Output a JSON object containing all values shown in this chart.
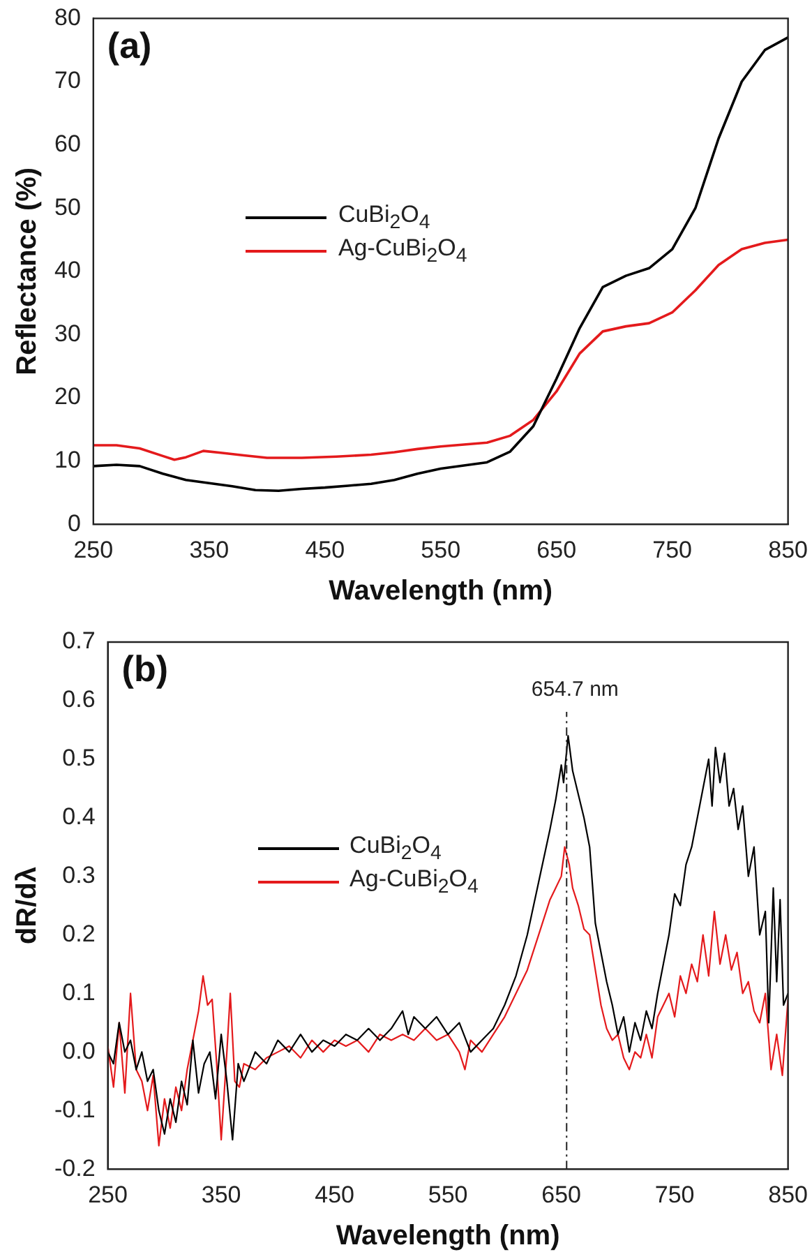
{
  "chart_data": [
    {
      "type": "line",
      "xlabel": "Wavelength (nm)",
      "ylabel": "Reflectance (%)",
      "xlim": [
        250,
        850
      ],
      "xticks": [
        250,
        350,
        450,
        550,
        650,
        750,
        850
      ],
      "ylim": [
        0,
        80
      ],
      "yticks": [
        0,
        10,
        20,
        30,
        40,
        50,
        60,
        70,
        80
      ],
      "legend": "left",
      "grid": false,
      "annotations": [
        "(a)"
      ],
      "series": [
        {
          "name": "CuBi$_{2}$O$_{4}$",
          "color": "#000000",
          "x": [
            250,
            270,
            290,
            310,
            330,
            350,
            370,
            390,
            410,
            430,
            450,
            470,
            490,
            510,
            530,
            550,
            570,
            590,
            610,
            630,
            650,
            670,
            690,
            710,
            730,
            750,
            770,
            790,
            810,
            830,
            850
          ],
          "values": [
            9.2,
            9.4,
            9.2,
            8,
            7,
            6.5,
            6,
            5.4,
            5.3,
            5.6,
            5.8,
            6.1,
            6.4,
            7,
            8,
            8.8,
            9.3,
            9.8,
            11.5,
            15.5,
            23,
            31,
            37.5,
            39.3,
            40.5,
            43.5,
            50,
            61,
            70,
            75,
            77
          ]
        },
        {
          "name": "Ag-CuBi$_{2}$O$_{4}$",
          "color": "#e41a1c",
          "x": [
            250,
            270,
            290,
            310,
            320,
            330,
            345,
            360,
            380,
            400,
            430,
            460,
            490,
            510,
            530,
            550,
            570,
            590,
            610,
            630,
            650,
            670,
            690,
            710,
            730,
            750,
            770,
            790,
            810,
            830,
            850
          ],
          "values": [
            12.5,
            12.5,
            12,
            10.8,
            10.2,
            10.6,
            11.6,
            11.3,
            10.9,
            10.5,
            10.5,
            10.7,
            11,
            11.4,
            11.9,
            12.3,
            12.6,
            12.9,
            14,
            16.5,
            21,
            27,
            30.5,
            31.3,
            31.8,
            33.5,
            37,
            41,
            43.5,
            44.5,
            45
          ]
        }
      ]
    },
    {
      "type": "line",
      "xlabel": "Wavelength (nm)",
      "ylabel": "dR/dλ",
      "xlim": [
        250,
        850
      ],
      "xticks": [
        250,
        350,
        450,
        550,
        650,
        750,
        850
      ],
      "ylim": [
        -0.2,
        0.7
      ],
      "yticks": [
        {
          "value": -0.2,
          "label": "-0.2"
        },
        {
          "value": -0.1,
          "label": "-0.1"
        },
        {
          "value": 0,
          "label": "0.0"
        },
        0.1,
        0.2,
        0.3,
        0.4,
        0.5,
        0.6,
        0.7
      ],
      "legend": "left",
      "grid": false,
      "annotations": [
        "(b)"
      ],
      "ref_lines": [
        {
          "axis": "x",
          "value": 654.7,
          "label": "654.7 nm",
          "line_style": "dashdot"
        }
      ],
      "series": [
        {
          "name": "CuBi$_{2}$O$_{4}$",
          "color": "#000000",
          "x": [
            250,
            255,
            260,
            265,
            270,
            275,
            280,
            285,
            290,
            295,
            300,
            305,
            310,
            315,
            320,
            325,
            330,
            335,
            340,
            345,
            350,
            355,
            360,
            365,
            370,
            380,
            390,
            400,
            410,
            420,
            430,
            440,
            450,
            460,
            470,
            480,
            490,
            500,
            510,
            515,
            520,
            530,
            540,
            550,
            560,
            570,
            580,
            590,
            600,
            610,
            620,
            630,
            640,
            645,
            650,
            652,
            656,
            660,
            665,
            670,
            675,
            680,
            685,
            690,
            695,
            700,
            705,
            710,
            715,
            720,
            725,
            730,
            735,
            740,
            745,
            750,
            755,
            760,
            765,
            770,
            775,
            780,
            783,
            786,
            790,
            794,
            798,
            802,
            806,
            810,
            815,
            820,
            825,
            830,
            833,
            837,
            840,
            843,
            846,
            850
          ],
          "values": [
            0.0,
            -0.02,
            0.05,
            0.0,
            0.02,
            -0.03,
            0.0,
            -0.05,
            -0.03,
            -0.1,
            -0.14,
            -0.08,
            -0.12,
            -0.05,
            -0.09,
            0.02,
            -0.07,
            -0.02,
            0.0,
            -0.08,
            0.03,
            -0.05,
            -0.15,
            -0.02,
            -0.05,
            0.0,
            -0.02,
            0.02,
            0.0,
            0.03,
            0.0,
            0.02,
            0.01,
            0.03,
            0.02,
            0.04,
            0.02,
            0.04,
            0.07,
            0.03,
            0.06,
            0.04,
            0.06,
            0.03,
            0.05,
            0.0,
            0.02,
            0.04,
            0.08,
            0.13,
            0.2,
            0.29,
            0.38,
            0.43,
            0.49,
            0.46,
            0.54,
            0.48,
            0.44,
            0.4,
            0.35,
            0.22,
            0.17,
            0.12,
            0.08,
            0.03,
            0.06,
            0.0,
            0.05,
            0.02,
            0.07,
            0.04,
            0.1,
            0.15,
            0.2,
            0.27,
            0.25,
            0.32,
            0.35,
            0.4,
            0.45,
            0.5,
            0.42,
            0.52,
            0.46,
            0.51,
            0.42,
            0.45,
            0.38,
            0.42,
            0.3,
            0.35,
            0.2,
            0.24,
            0.05,
            0.28,
            0.12,
            0.26,
            0.08,
            0.1
          ]
        },
        {
          "name": "Ag-CuBi$_{2}$O$_{4}$",
          "color": "#e41a1c",
          "x": [
            250,
            255,
            260,
            265,
            270,
            275,
            280,
            285,
            290,
            295,
            300,
            305,
            310,
            315,
            320,
            325,
            330,
            334,
            338,
            342,
            346,
            350,
            355,
            358,
            362,
            366,
            370,
            380,
            390,
            400,
            410,
            420,
            430,
            440,
            450,
            460,
            470,
            480,
            490,
            500,
            510,
            520,
            530,
            540,
            550,
            560,
            565,
            570,
            580,
            590,
            600,
            610,
            620,
            630,
            640,
            645,
            650,
            653,
            657,
            660,
            665,
            670,
            675,
            680,
            685,
            690,
            695,
            700,
            705,
            710,
            715,
            720,
            725,
            730,
            735,
            740,
            745,
            750,
            755,
            760,
            765,
            770,
            775,
            780,
            785,
            790,
            795,
            800,
            805,
            810,
            815,
            820,
            825,
            830,
            835,
            840,
            845,
            850
          ],
          "values": [
            0.01,
            -0.06,
            0.05,
            -0.07,
            0.1,
            -0.03,
            -0.05,
            -0.1,
            -0.04,
            -0.16,
            -0.08,
            -0.13,
            -0.06,
            -0.1,
            -0.03,
            0.02,
            0.07,
            0.13,
            0.08,
            0.09,
            -0.02,
            -0.15,
            0.0,
            0.1,
            -0.05,
            -0.06,
            -0.02,
            -0.03,
            -0.01,
            0.0,
            0.01,
            -0.01,
            0.02,
            0.0,
            0.02,
            0.01,
            0.02,
            0.0,
            0.03,
            0.02,
            0.03,
            0.02,
            0.04,
            0.02,
            0.03,
            0.0,
            -0.03,
            0.02,
            0.0,
            0.03,
            0.06,
            0.1,
            0.14,
            0.2,
            0.26,
            0.28,
            0.3,
            0.35,
            0.32,
            0.28,
            0.25,
            0.21,
            0.2,
            0.14,
            0.08,
            0.04,
            0.02,
            0.03,
            -0.01,
            -0.03,
            0.0,
            -0.01,
            0.03,
            -0.01,
            0.06,
            0.08,
            0.1,
            0.06,
            0.13,
            0.1,
            0.15,
            0.12,
            0.2,
            0.13,
            0.24,
            0.15,
            0.2,
            0.14,
            0.17,
            0.1,
            0.12,
            0.07,
            0.05,
            0.1,
            -0.03,
            0.03,
            -0.04,
            0.09
          ]
        }
      ]
    }
  ]
}
